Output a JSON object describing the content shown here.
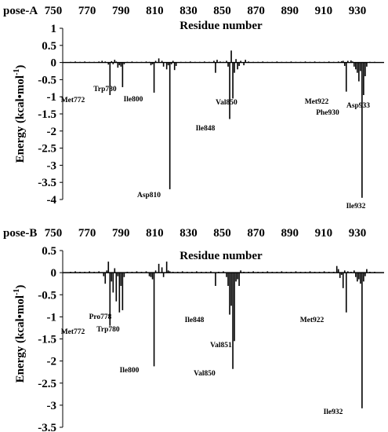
{
  "chart_data": [
    {
      "type": "bar",
      "panel_label": "pose-A",
      "xlabel": "Residue number",
      "ylabel": "Energy (kcal•mol",
      "ylabel_sup": "-1",
      "ylabel_close": ")",
      "x_ticks": [
        750,
        770,
        790,
        810,
        830,
        850,
        870,
        890,
        910,
        930
      ],
      "y_ticks": [
        "1",
        "0.5",
        "0",
        "-0.5",
        "-1",
        "-1.5",
        "-2",
        "-2.5",
        "-3",
        "-3.5",
        "-4"
      ],
      "ylim": [
        -4,
        1
      ],
      "xlim": [
        742,
        946
      ],
      "bars": [
        {
          "x": 747,
          "y": 0.02
        },
        {
          "x": 750,
          "y": 0.03
        },
        {
          "x": 753,
          "y": 0.02
        },
        {
          "x": 756,
          "y": 0.03
        },
        {
          "x": 759,
          "y": 0.02
        },
        {
          "x": 762,
          "y": 0.02
        },
        {
          "x": 765,
          "y": 0.03
        },
        {
          "x": 767,
          "y": 0.05
        },
        {
          "x": 769,
          "y": 0.03
        },
        {
          "x": 771,
          "y": -0.06
        },
        {
          "x": 772,
          "y": -0.95
        },
        {
          "x": 773,
          "y": 0.04
        },
        {
          "x": 774,
          "y": -0.05
        },
        {
          "x": 775,
          "y": 0.08
        },
        {
          "x": 776,
          "y": 0.03
        },
        {
          "x": 777,
          "y": -0.15
        },
        {
          "x": 778,
          "y": -0.08
        },
        {
          "x": 779,
          "y": -0.12
        },
        {
          "x": 780,
          "y": -0.72
        },
        {
          "x": 781,
          "y": -0.05
        },
        {
          "x": 783,
          "y": 0.02
        },
        {
          "x": 786,
          "y": 0.03
        },
        {
          "x": 789,
          "y": 0.02
        },
        {
          "x": 792,
          "y": 0.02
        },
        {
          "x": 795,
          "y": 0.03
        },
        {
          "x": 797,
          "y": 0.02
        },
        {
          "x": 798,
          "y": -0.08
        },
        {
          "x": 799,
          "y": -0.05
        },
        {
          "x": 800,
          "y": -0.88
        },
        {
          "x": 801,
          "y": 0.05
        },
        {
          "x": 803,
          "y": 0.12
        },
        {
          "x": 805,
          "y": 0.05
        },
        {
          "x": 806,
          "y": -0.12
        },
        {
          "x": 808,
          "y": -0.2
        },
        {
          "x": 809,
          "y": -0.08
        },
        {
          "x": 810,
          "y": -3.7
        },
        {
          "x": 811,
          "y": -0.05
        },
        {
          "x": 812,
          "y": 0.05
        },
        {
          "x": 813,
          "y": -0.22
        },
        {
          "x": 814,
          "y": -0.1
        },
        {
          "x": 817,
          "y": 0.02
        },
        {
          "x": 820,
          "y": 0.02
        },
        {
          "x": 823,
          "y": 0.03
        },
        {
          "x": 826,
          "y": 0.02
        },
        {
          "x": 829,
          "y": 0.02
        },
        {
          "x": 832,
          "y": 0.03
        },
        {
          "x": 835,
          "y": 0.02
        },
        {
          "x": 838,
          "y": 0.05
        },
        {
          "x": 839,
          "y": -0.3
        },
        {
          "x": 840,
          "y": 0.08
        },
        {
          "x": 842,
          "y": 0.03
        },
        {
          "x": 844,
          "y": 0.02
        },
        {
          "x": 846,
          "y": 0.05
        },
        {
          "x": 847,
          "y": -0.12
        },
        {
          "x": 848,
          "y": -1.65
        },
        {
          "x": 849,
          "y": 0.35
        },
        {
          "x": 850,
          "y": -1.05
        },
        {
          "x": 851,
          "y": -0.3
        },
        {
          "x": 852,
          "y": 0.1
        },
        {
          "x": 853,
          "y": -0.2
        },
        {
          "x": 854,
          "y": -0.1
        },
        {
          "x": 855,
          "y": 0.05
        },
        {
          "x": 857,
          "y": -0.08
        },
        {
          "x": 858,
          "y": 0.08
        },
        {
          "x": 860,
          "y": 0.03
        },
        {
          "x": 863,
          "y": 0.02
        },
        {
          "x": 866,
          "y": 0.02
        },
        {
          "x": 869,
          "y": 0.03
        },
        {
          "x": 872,
          "y": 0.02
        },
        {
          "x": 875,
          "y": 0.02
        },
        {
          "x": 878,
          "y": 0.03
        },
        {
          "x": 881,
          "y": 0.02
        },
        {
          "x": 884,
          "y": 0.02
        },
        {
          "x": 887,
          "y": 0.03
        },
        {
          "x": 890,
          "y": 0.02
        },
        {
          "x": 893,
          "y": 0.02
        },
        {
          "x": 896,
          "y": 0.03
        },
        {
          "x": 899,
          "y": 0.02
        },
        {
          "x": 902,
          "y": 0.03
        },
        {
          "x": 905,
          "y": 0.02
        },
        {
          "x": 908,
          "y": 0.02
        },
        {
          "x": 911,
          "y": 0.03
        },
        {
          "x": 914,
          "y": 0.02
        },
        {
          "x": 917,
          "y": 0.03
        },
        {
          "x": 919,
          "y": 0.04
        },
        {
          "x": 920,
          "y": 0.05
        },
        {
          "x": 921,
          "y": -0.1
        },
        {
          "x": 922,
          "y": -0.85
        },
        {
          "x": 923,
          "y": 0.05
        },
        {
          "x": 925,
          "y": 0.06
        },
        {
          "x": 926,
          "y": 0.03
        },
        {
          "x": 927,
          "y": -0.12
        },
        {
          "x": 928,
          "y": -0.2
        },
        {
          "x": 929,
          "y": -0.3
        },
        {
          "x": 930,
          "y": -0.55
        },
        {
          "x": 931,
          "y": -0.25
        },
        {
          "x": 932,
          "y": -3.95
        },
        {
          "x": 933,
          "y": -0.95
        },
        {
          "x": 934,
          "y": -0.4
        },
        {
          "x": 935,
          "y": -0.12
        },
        {
          "x": 937,
          "y": 0.02
        },
        {
          "x": 940,
          "y": 0.02
        }
      ],
      "annotations": [
        {
          "text": "Met772"
        },
        {
          "text": "Trp780"
        },
        {
          "text": "Ile800"
        },
        {
          "text": "Asp810"
        },
        {
          "text": "Ile848"
        },
        {
          "text": "Val850"
        },
        {
          "text": "Met922"
        },
        {
          "text": "Phe930"
        },
        {
          "text": "Asp933"
        },
        {
          "text": "Ile932"
        }
      ]
    },
    {
      "type": "bar",
      "panel_label": "pose-B",
      "xlabel": "Residue number",
      "ylabel": "Energy (kcal•mol",
      "ylabel_sup": "-1",
      "ylabel_close": ")",
      "x_ticks": [
        750,
        770,
        790,
        810,
        830,
        850,
        870,
        890,
        910,
        930
      ],
      "y_ticks": [
        "0.5",
        "0",
        "-0.5",
        "-1",
        "-1.5",
        "-2",
        "-2.5",
        "-3",
        "-3.5"
      ],
      "ylim": [
        -3.5,
        0.5
      ],
      "xlim": [
        742,
        946
      ],
      "bars": [
        {
          "x": 747,
          "y": 0.02
        },
        {
          "x": 750,
          "y": 0.03
        },
        {
          "x": 753,
          "y": 0.02
        },
        {
          "x": 756,
          "y": 0.02
        },
        {
          "x": 759,
          "y": 0.03
        },
        {
          "x": 762,
          "y": 0.02
        },
        {
          "x": 765,
          "y": 0.03
        },
        {
          "x": 768,
          "y": -0.08
        },
        {
          "x": 769,
          "y": -0.25
        },
        {
          "x": 770,
          "y": 0.05
        },
        {
          "x": 771,
          "y": 0.25
        },
        {
          "x": 772,
          "y": -1.2
        },
        {
          "x": 773,
          "y": -0.2
        },
        {
          "x": 774,
          "y": -0.45
        },
        {
          "x": 775,
          "y": 0.1
        },
        {
          "x": 776,
          "y": -0.65
        },
        {
          "x": 777,
          "y": -0.08
        },
        {
          "x": 778,
          "y": -0.9
        },
        {
          "x": 779,
          "y": -0.3
        },
        {
          "x": 780,
          "y": -0.85
        },
        {
          "x": 781,
          "y": -0.1
        },
        {
          "x": 783,
          "y": 0.02
        },
        {
          "x": 786,
          "y": 0.02
        },
        {
          "x": 789,
          "y": 0.03
        },
        {
          "x": 792,
          "y": 0.02
        },
        {
          "x": 795,
          "y": 0.03
        },
        {
          "x": 797,
          "y": -0.08
        },
        {
          "x": 798,
          "y": -0.1
        },
        {
          "x": 799,
          "y": -0.15
        },
        {
          "x": 800,
          "y": -2.12
        },
        {
          "x": 801,
          "y": 0.05
        },
        {
          "x": 803,
          "y": 0.2
        },
        {
          "x": 805,
          "y": 0.12
        },
        {
          "x": 806,
          "y": -0.1
        },
        {
          "x": 808,
          "y": 0.25
        },
        {
          "x": 809,
          "y": 0.05
        },
        {
          "x": 810,
          "y": 0.03
        },
        {
          "x": 812,
          "y": 0.02
        },
        {
          "x": 815,
          "y": 0.02
        },
        {
          "x": 818,
          "y": 0.03
        },
        {
          "x": 821,
          "y": 0.02
        },
        {
          "x": 824,
          "y": 0.02
        },
        {
          "x": 827,
          "y": 0.03
        },
        {
          "x": 830,
          "y": 0.02
        },
        {
          "x": 833,
          "y": 0.02
        },
        {
          "x": 836,
          "y": 0.03
        },
        {
          "x": 839,
          "y": -0.3
        },
        {
          "x": 841,
          "y": 0.02
        },
        {
          "x": 844,
          "y": 0.03
        },
        {
          "x": 846,
          "y": -0.1
        },
        {
          "x": 847,
          "y": -0.3
        },
        {
          "x": 848,
          "y": -0.95
        },
        {
          "x": 849,
          "y": -0.75
        },
        {
          "x": 850,
          "y": -2.18
        },
        {
          "x": 851,
          "y": -1.55
        },
        {
          "x": 852,
          "y": -0.2
        },
        {
          "x": 853,
          "y": -0.15
        },
        {
          "x": 854,
          "y": -0.3
        },
        {
          "x": 855,
          "y": 0.05
        },
        {
          "x": 857,
          "y": 0.02
        },
        {
          "x": 860,
          "y": 0.02
        },
        {
          "x": 863,
          "y": 0.03
        },
        {
          "x": 866,
          "y": 0.02
        },
        {
          "x": 869,
          "y": 0.02
        },
        {
          "x": 872,
          "y": 0.03
        },
        {
          "x": 875,
          "y": 0.02
        },
        {
          "x": 878,
          "y": 0.02
        },
        {
          "x": 881,
          "y": 0.03
        },
        {
          "x": 884,
          "y": 0.02
        },
        {
          "x": 887,
          "y": 0.02
        },
        {
          "x": 890,
          "y": 0.03
        },
        {
          "x": 893,
          "y": 0.02
        },
        {
          "x": 896,
          "y": 0.02
        },
        {
          "x": 899,
          "y": 0.03
        },
        {
          "x": 902,
          "y": 0.02
        },
        {
          "x": 905,
          "y": 0.02
        },
        {
          "x": 908,
          "y": 0.03
        },
        {
          "x": 911,
          "y": 0.02
        },
        {
          "x": 914,
          "y": 0.02
        },
        {
          "x": 916,
          "y": 0.15
        },
        {
          "x": 917,
          "y": 0.08
        },
        {
          "x": 918,
          "y": -0.12
        },
        {
          "x": 919,
          "y": -0.05
        },
        {
          "x": 920,
          "y": -0.35
        },
        {
          "x": 921,
          "y": 0.05
        },
        {
          "x": 922,
          "y": -0.9
        },
        {
          "x": 923,
          "y": 0.03
        },
        {
          "x": 925,
          "y": 0.02
        },
        {
          "x": 927,
          "y": 0.05
        },
        {
          "x": 928,
          "y": -0.1
        },
        {
          "x": 929,
          "y": -0.2
        },
        {
          "x": 930,
          "y": -0.15
        },
        {
          "x": 931,
          "y": -0.25
        },
        {
          "x": 932,
          "y": -3.07
        },
        {
          "x": 933,
          "y": -0.2
        },
        {
          "x": 934,
          "y": -0.08
        },
        {
          "x": 935,
          "y": 0.08
        },
        {
          "x": 937,
          "y": 0.02
        },
        {
          "x": 940,
          "y": 0.02
        }
      ],
      "annotations": [
        {
          "text": "Met772"
        },
        {
          "text": "Pro778"
        },
        {
          "text": "Trp780"
        },
        {
          "text": "Ile800"
        },
        {
          "text": "Ile848"
        },
        {
          "text": "Val851"
        },
        {
          "text": "Val850"
        },
        {
          "text": "Met922"
        },
        {
          "text": "Ile932"
        }
      ]
    }
  ]
}
